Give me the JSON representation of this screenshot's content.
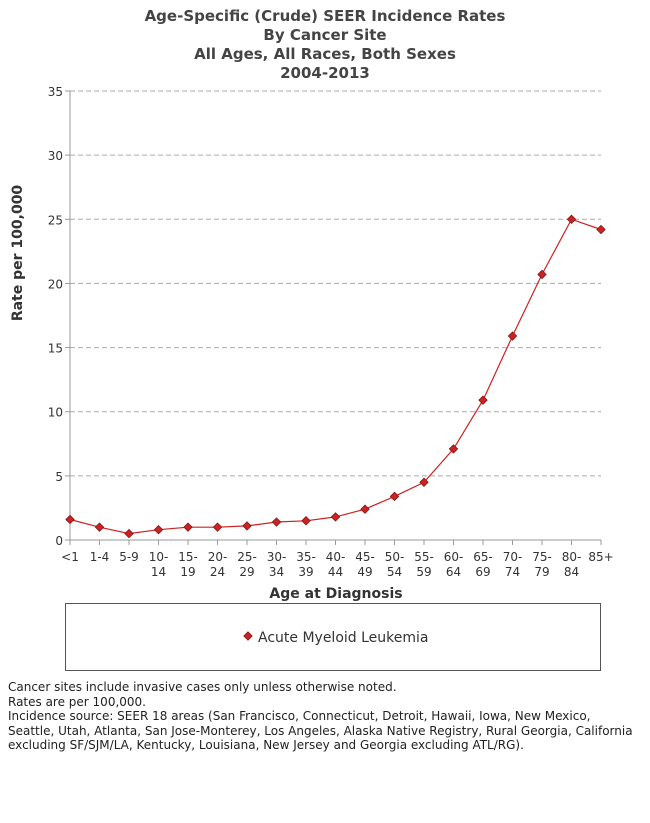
{
  "chart_data": {
    "type": "line",
    "title": [
      "Age-Specific (Crude) SEER Incidence Rates",
      "By Cancer Site",
      "All Ages, All Races, Both Sexes",
      "2004-2013"
    ],
    "xlabel": "Age at Diagnosis",
    "ylabel": "Rate per 100,000",
    "ylim": [
      0,
      35
    ],
    "yticks": [
      0,
      5,
      10,
      15,
      20,
      25,
      30,
      35
    ],
    "grid": "horizontal dashed",
    "categories": [
      [
        "<1"
      ],
      [
        "1-4"
      ],
      [
        "5-9"
      ],
      [
        "10-",
        "14"
      ],
      [
        "15-",
        "19"
      ],
      [
        "20-",
        "24"
      ],
      [
        "25-",
        "29"
      ],
      [
        "30-",
        "34"
      ],
      [
        "35-",
        "39"
      ],
      [
        "40-",
        "44"
      ],
      [
        "45-",
        "49"
      ],
      [
        "50-",
        "54"
      ],
      [
        "55-",
        "59"
      ],
      [
        "60-",
        "64"
      ],
      [
        "65-",
        "69"
      ],
      [
        "70-",
        "74"
      ],
      [
        "75-",
        "79"
      ],
      [
        "80-",
        "84"
      ],
      [
        "85+"
      ]
    ],
    "series": [
      {
        "name": "Acute Myeloid Leukemia",
        "color": "#cc2222",
        "values": [
          1.6,
          1.0,
          0.5,
          0.8,
          1.0,
          1.0,
          1.1,
          1.4,
          1.5,
          1.8,
          2.4,
          3.4,
          4.5,
          7.1,
          10.9,
          15.9,
          20.7,
          25.0,
          24.2
        ]
      }
    ],
    "legend": "bottom box"
  },
  "footnotes": [
    "Cancer sites include invasive cases only unless otherwise noted.",
    "Rates are per 100,000.",
    "Incidence source: SEER 18 areas (San Francisco, Connecticut, Detroit, Hawaii, Iowa, New Mexico, Seattle, Utah, Atlanta, San Jose-Monterey, Los Angeles, Alaska Native Registry, Rural Georgia, California excluding SF/SJM/LA, Kentucky, Louisiana, New Jersey and Georgia excluding ATL/RG)."
  ]
}
